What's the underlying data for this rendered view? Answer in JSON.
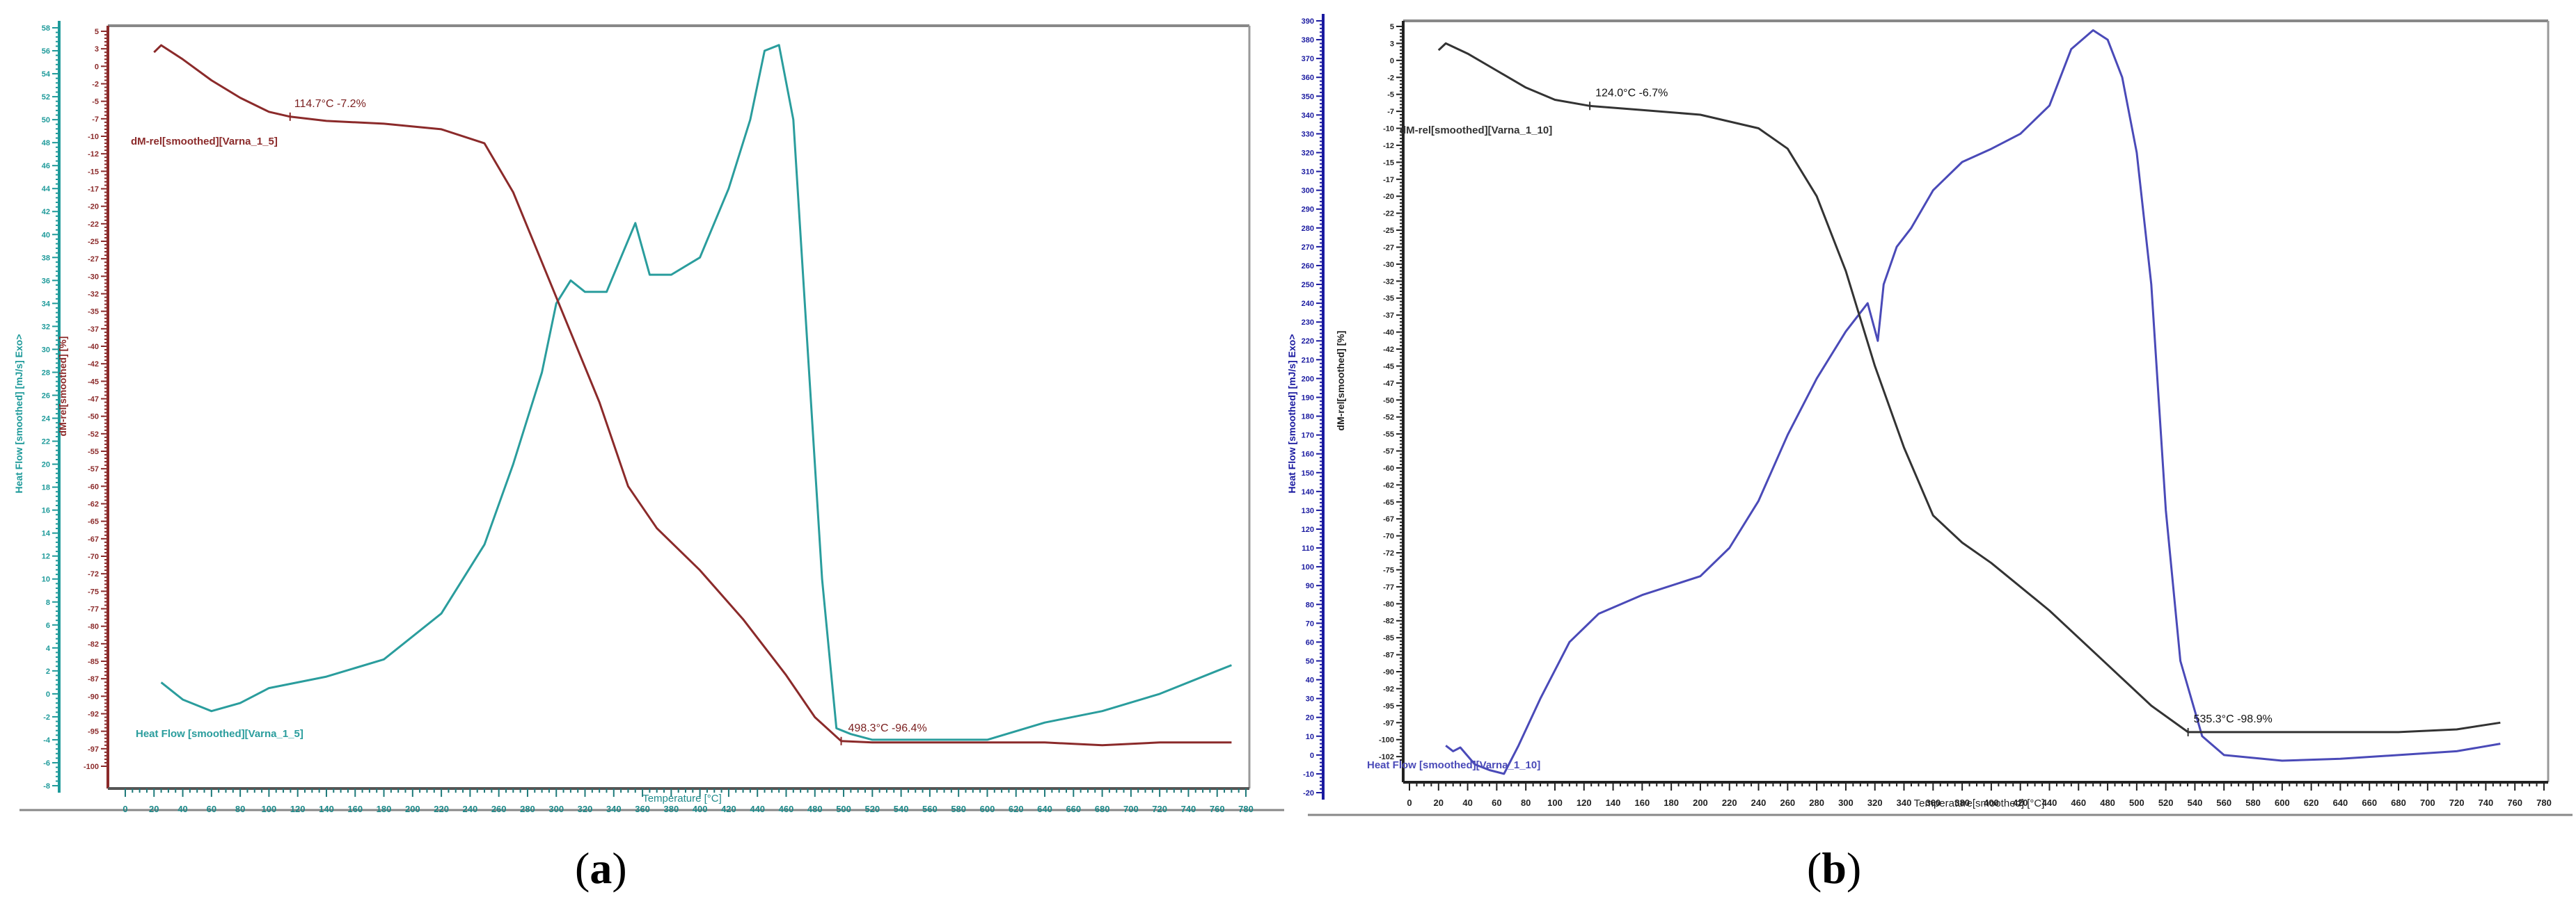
{
  "figure": {
    "captions": [
      {
        "open": "(",
        "letter": "a",
        "close": ")"
      },
      {
        "open": "(",
        "letter": "b",
        "close": ")"
      }
    ]
  },
  "panels": [
    {
      "id": "a",
      "heat_axis_title": "Heat Flow [smoothed]  [mJ/s] Exo>",
      "mass_axis_title": "dM-rel[smoothed]  [%]",
      "x_axis_title": "Temperature  [°C]",
      "heat_label": "Heat Flow [smoothed][Varna_1_5]",
      "mass_label": "dM-rel[smoothed][Varna_1_5]",
      "annotation_1": "114.7°C  -7.2%",
      "annotation_2": "498.3°C  -96.4%",
      "colors": {
        "heat": "#2a9d9d",
        "mass": "#8b2a2a",
        "axis_heat": "#1e9a9a",
        "axis_mass": "#8b2a2a",
        "xaxis_text": "#1e8a8a"
      }
    },
    {
      "id": "b",
      "heat_axis_title": "Heat Flow [smoothed]  [mJ/s] Exo>",
      "mass_axis_title": "dM-rel[smoothed]  [%]",
      "x_axis_title": "Temperature[smoothed]  [°C]",
      "heat_label": "Heat Flow [smoothed][Varna_1_10]",
      "mass_label": "dM-rel[smoothed][Varna_1_10]",
      "annotation_1": "124.0°C  -6.7%",
      "annotation_2": "535.3°C  -98.9%",
      "colors": {
        "heat": "#4a4ab8",
        "mass": "#333333",
        "axis_heat": "#1a1aa0",
        "axis_mass": "#222222",
        "xaxis_text": "#222222"
      }
    }
  ],
  "chart_data": [
    {
      "type": "line",
      "title": "(a) Varna_1_5",
      "xlabel": "Temperature [°C]",
      "ylabel": "Heat Flow [smoothed] [mJ/s] Exo>",
      "y2label": "dM-rel[smoothed] [%]",
      "xlim": [
        0,
        780
      ],
      "x_ticks": [
        0,
        20,
        40,
        60,
        80,
        100,
        120,
        140,
        160,
        180,
        200,
        220,
        240,
        260,
        280,
        300,
        320,
        340,
        360,
        380,
        400,
        420,
        440,
        460,
        480,
        500,
        520,
        540,
        560,
        580,
        600,
        620,
        640,
        660,
        680,
        700,
        720,
        740,
        760,
        780
      ],
      "ylim_heat": [
        -8,
        58
      ],
      "ylim_mass": [
        -100,
        5
      ],
      "grid": false,
      "annotations": [
        {
          "x": 114.7,
          "y": -7.2,
          "text": "114.7°C  -7.2%"
        },
        {
          "x": 498.3,
          "y": -96.4,
          "text": "498.3°C  -96.4%"
        }
      ],
      "series": [
        {
          "name": "Heat Flow [smoothed][Varna_1_5]",
          "axis": "heat",
          "x": [
            25,
            40,
            60,
            80,
            100,
            140,
            180,
            220,
            250,
            270,
            290,
            300,
            310,
            320,
            335,
            345,
            355,
            365,
            380,
            400,
            420,
            435,
            445,
            455,
            465,
            475,
            485,
            495,
            505,
            520,
            560,
            600,
            640,
            680,
            720,
            760,
            770
          ],
          "y": [
            1.0,
            -0.5,
            -1.5,
            -0.8,
            0.5,
            1.5,
            3.0,
            7.0,
            13.0,
            20.0,
            28.0,
            34.0,
            36.0,
            35.0,
            35.0,
            38.0,
            41.0,
            36.5,
            36.5,
            38.0,
            44.0,
            50.0,
            56.0,
            56.5,
            50.0,
            30.0,
            10.0,
            -3.0,
            -3.5,
            -4.0,
            -4.0,
            -4.0,
            -2.5,
            -1.5,
            0.0,
            2.0,
            2.5
          ]
        },
        {
          "name": "dM-rel[smoothed][Varna_1_5]",
          "axis": "mass",
          "x": [
            20,
            25,
            40,
            60,
            80,
            100,
            114.7,
            140,
            180,
            220,
            250,
            270,
            290,
            310,
            330,
            350,
            370,
            400,
            430,
            460,
            480,
            498.3,
            520,
            560,
            600,
            640,
            680,
            720,
            760,
            770
          ],
          "y": [
            2.0,
            3.0,
            1.0,
            -2.0,
            -4.5,
            -6.5,
            -7.2,
            -7.8,
            -8.2,
            -9.0,
            -11.0,
            -18.0,
            -28.0,
            -38.0,
            -48.0,
            -60.0,
            -66.0,
            -72.0,
            -79.0,
            -87.0,
            -93.0,
            -96.4,
            -96.6,
            -96.6,
            -96.6,
            -96.6,
            -97.0,
            -96.6,
            -96.6,
            -96.6
          ]
        }
      ]
    },
    {
      "type": "line",
      "title": "(b) Varna_1_10",
      "xlabel": "Temperature[smoothed] [°C]",
      "ylabel": "Heat Flow [smoothed] [mJ/s] Exo>",
      "y2label": "dM-rel[smoothed] [%]",
      "xlim": [
        0,
        780
      ],
      "x_ticks": [
        0,
        20,
        40,
        60,
        80,
        100,
        120,
        140,
        160,
        180,
        200,
        220,
        240,
        260,
        280,
        300,
        320,
        340,
        360,
        380,
        400,
        420,
        440,
        460,
        480,
        500,
        520,
        540,
        560,
        580,
        600,
        620,
        640,
        660,
        680,
        700,
        720,
        740,
        760,
        780
      ],
      "ylim_heat": [
        -20,
        390
      ],
      "ylim_mass": [
        -103,
        5
      ],
      "grid": false,
      "annotations": [
        {
          "x": 124.0,
          "y": -6.7,
          "text": "124.0°C  -6.7%"
        },
        {
          "x": 535.3,
          "y": -98.9,
          "text": "535.3°C  -98.9%"
        }
      ],
      "series": [
        {
          "name": "Heat Flow [smoothed][Varna_1_10]",
          "axis": "heat",
          "x": [
            25,
            30,
            35,
            45,
            55,
            65,
            75,
            90,
            110,
            130,
            160,
            200,
            220,
            240,
            260,
            280,
            300,
            315,
            322,
            326,
            335,
            345,
            360,
            380,
            400,
            420,
            440,
            455,
            470,
            480,
            490,
            500,
            510,
            520,
            530,
            545,
            560,
            600,
            640,
            680,
            720,
            750
          ],
          "y": [
            5,
            2,
            4,
            -5,
            -8,
            -10,
            5,
            30,
            60,
            75,
            85,
            95,
            110,
            135,
            170,
            200,
            225,
            240,
            220,
            250,
            270,
            280,
            300,
            315,
            322,
            330,
            345,
            375,
            385,
            380,
            360,
            320,
            250,
            130,
            50,
            10,
            0,
            -3,
            -2,
            0,
            2,
            6
          ]
        },
        {
          "name": "dM-rel[smoothed][Varna_1_10]",
          "axis": "mass",
          "x": [
            20,
            25,
            40,
            60,
            80,
            100,
            124.0,
            160,
            200,
            240,
            260,
            280,
            300,
            320,
            340,
            360,
            380,
            400,
            440,
            480,
            510,
            535.3,
            560,
            600,
            640,
            680,
            720,
            750
          ],
          "y": [
            1.5,
            2.5,
            1.0,
            -1.5,
            -4.0,
            -5.8,
            -6.7,
            -7.3,
            -8.0,
            -10.0,
            -13.0,
            -20.0,
            -31.0,
            -45.0,
            -57.0,
            -67.0,
            -71.0,
            -74.0,
            -81.0,
            -89.0,
            -95.0,
            -98.9,
            -98.9,
            -98.9,
            -98.9,
            -98.9,
            -98.5,
            -97.5
          ]
        }
      ]
    }
  ]
}
